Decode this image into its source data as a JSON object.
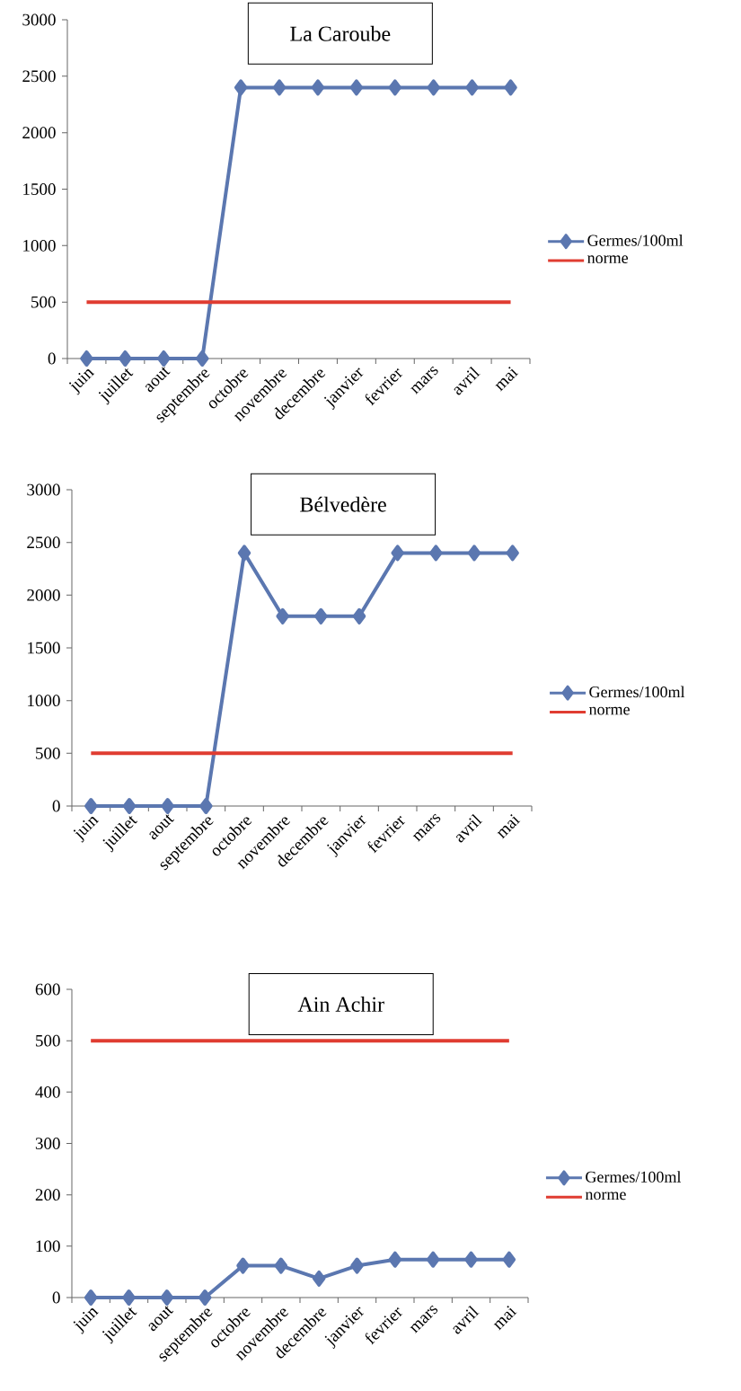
{
  "chart_data": [
    {
      "type": "line",
      "title": "La Caroube",
      "categories": [
        "juin",
        "juillet",
        "aout",
        "septembre",
        "octobre",
        "novembre",
        "decembre",
        "janvier",
        "fevrier",
        "mars",
        "avril",
        "mai"
      ],
      "ylim": [
        0,
        3000
      ],
      "yticks": [
        0,
        500,
        1000,
        1500,
        2000,
        2500,
        3000
      ],
      "legend": "right",
      "marker": "diamond",
      "series": [
        {
          "name": "Germes/100ml",
          "color": "#5b77b0",
          "values": [
            0,
            0,
            0,
            0,
            2400,
            2400,
            2400,
            2400,
            2400,
            2400,
            2400,
            2400
          ]
        },
        {
          "name": "norme",
          "color": "#e03c31",
          "marker": "none",
          "values": [
            500,
            500,
            500,
            500,
            500,
            500,
            500,
            500,
            500,
            500,
            500,
            500
          ]
        }
      ]
    },
    {
      "type": "line",
      "title": "Bélvedère",
      "categories": [
        "juin",
        "juillet",
        "aout",
        "septembre",
        "octobre",
        "novembre",
        "decembre",
        "janvier",
        "fevrier",
        "mars",
        "avril",
        "mai"
      ],
      "ylim": [
        0,
        3000
      ],
      "yticks": [
        0,
        500,
        1000,
        1500,
        2000,
        2500,
        3000
      ],
      "legend": "right",
      "marker": "diamond",
      "series": [
        {
          "name": "Germes/100ml",
          "color": "#5b77b0",
          "values": [
            0,
            0,
            0,
            0,
            2400,
            1800,
            1800,
            1800,
            2400,
            2400,
            2400,
            2400
          ]
        },
        {
          "name": "norme",
          "color": "#e03c31",
          "marker": "none",
          "values": [
            500,
            500,
            500,
            500,
            500,
            500,
            500,
            500,
            500,
            500,
            500,
            500
          ]
        }
      ]
    },
    {
      "type": "line",
      "title": "Ain Achir",
      "categories": [
        "juin",
        "juillet",
        "aout",
        "septembre",
        "octobre",
        "novembre",
        "decembre",
        "janvier",
        "fevrier",
        "mars",
        "avril",
        "mai"
      ],
      "ylim": [
        0,
        600
      ],
      "yticks": [
        0,
        100,
        200,
        300,
        400,
        500,
        600
      ],
      "legend": "right",
      "marker": "diamond",
      "series": [
        {
          "name": "Germes/100ml",
          "color": "#5b77b0",
          "values": [
            0,
            0,
            0,
            0,
            62,
            62,
            37,
            62,
            74,
            74,
            74,
            74
          ]
        },
        {
          "name": "norme",
          "color": "#e03c31",
          "marker": "none",
          "values": [
            500,
            500,
            500,
            500,
            500,
            500,
            500,
            500,
            500,
            500,
            500,
            500
          ]
        }
      ]
    }
  ]
}
